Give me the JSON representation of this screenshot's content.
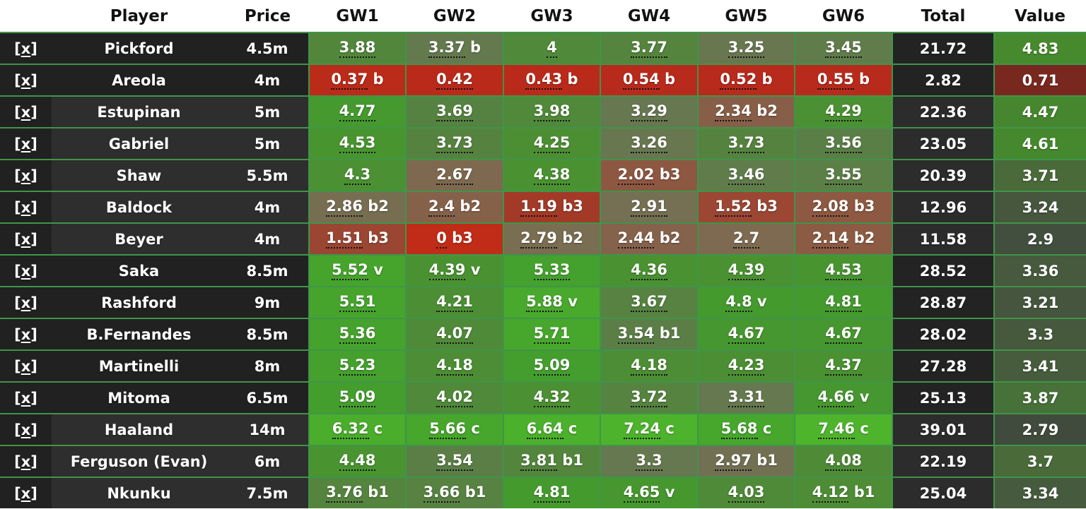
{
  "header": {
    "remove": "",
    "player": "Player",
    "price": "Price",
    "gws": [
      "GW1",
      "GW2",
      "GW3",
      "GW4",
      "GW5",
      "GW6"
    ],
    "total": "Total",
    "value": "Value"
  },
  "remove_label": "[x]",
  "group_shades": {
    "gk": "dark",
    "def": "light",
    "mid": "dark",
    "fwd": "light"
  },
  "colors": {
    "header_bg": "#ffffff",
    "header_text": "#121212",
    "cell_text": "#ffffff",
    "row_bg_dark": "#212121",
    "row_bg_light": "#2e2e2e",
    "total_bg_dark": "#232323",
    "total_bg_light": "#2c2c2c",
    "grid_border": "#3f9549",
    "dotted_underline": "#101010"
  },
  "heatmap": {
    "gw_stops": [
      [
        0.0,
        "#c02c17"
      ],
      [
        0.55,
        "#b82a1c"
      ],
      [
        1.2,
        "#a33a27"
      ],
      [
        1.55,
        "#9a4835"
      ],
      [
        2.1,
        "#8c5a43"
      ],
      [
        2.45,
        "#85624b"
      ],
      [
        2.75,
        "#7b6c52"
      ],
      [
        3.05,
        "#6f7253"
      ],
      [
        3.4,
        "#637a4e"
      ],
      [
        3.6,
        "#588044"
      ],
      [
        3.8,
        "#54853d"
      ],
      [
        4.05,
        "#4f8a38"
      ],
      [
        4.3,
        "#4b9032"
      ],
      [
        4.6,
        "#47962f"
      ],
      [
        4.9,
        "#449c2e"
      ],
      [
        5.3,
        "#45a12d"
      ],
      [
        5.7,
        "#47a72c"
      ],
      [
        6.1,
        "#49ac2b"
      ],
      [
        6.7,
        "#4bb02b"
      ],
      [
        7.5,
        "#4eb42c"
      ]
    ],
    "value_stops": [
      [
        0.5,
        "#7f241c"
      ],
      [
        1.5,
        "#63362a"
      ],
      [
        2.3,
        "#4a4436"
      ],
      [
        2.79,
        "#404b3d"
      ],
      [
        3.0,
        "#435240"
      ],
      [
        3.24,
        "#46573e"
      ],
      [
        3.45,
        "#475d3c"
      ],
      [
        3.7,
        "#4a6a3a"
      ],
      [
        3.9,
        "#487139"
      ],
      [
        4.2,
        "#467d33"
      ],
      [
        4.47,
        "#46862e"
      ],
      [
        4.9,
        "#478b2e"
      ]
    ]
  },
  "players": [
    {
      "name": "Pickford",
      "price": "4.5m",
      "group": "gk",
      "gw": [
        "3.88",
        "3.37 b",
        "4",
        "3.77",
        "3.25",
        "3.45"
      ],
      "total": "21.72",
      "value": "4.83"
    },
    {
      "name": "Areola",
      "price": "4m",
      "group": "gk",
      "gw": [
        "0.37 b",
        "0.42",
        "0.43 b",
        "0.54 b",
        "0.52 b",
        "0.55 b"
      ],
      "total": "2.82",
      "value": "0.71"
    },
    {
      "name": "Estupinan",
      "price": "5m",
      "group": "def",
      "gw": [
        "4.77",
        "3.69",
        "3.98",
        "3.29",
        "2.34 b2",
        "4.29"
      ],
      "total": "22.36",
      "value": "4.47"
    },
    {
      "name": "Gabriel",
      "price": "5m",
      "group": "def",
      "gw": [
        "4.53",
        "3.73",
        "4.25",
        "3.26",
        "3.73",
        "3.56"
      ],
      "total": "23.05",
      "value": "4.61"
    },
    {
      "name": "Shaw",
      "price": "5.5m",
      "group": "def",
      "gw": [
        "4.3",
        "2.67",
        "4.38",
        "2.02 b3",
        "3.46",
        "3.55"
      ],
      "total": "20.39",
      "value": "3.71"
    },
    {
      "name": "Baldock",
      "price": "4m",
      "group": "def",
      "gw": [
        "2.86 b2",
        "2.4 b2",
        "1.19 b3",
        "2.91",
        "1.52 b3",
        "2.08 b3"
      ],
      "total": "12.96",
      "value": "3.24"
    },
    {
      "name": "Beyer",
      "price": "4m",
      "group": "def",
      "gw": [
        "1.51 b3",
        "0 b3",
        "2.79 b2",
        "2.44 b2",
        "2.7",
        "2.14 b2"
      ],
      "total": "11.58",
      "value": "2.9"
    },
    {
      "name": "Saka",
      "price": "8.5m",
      "group": "mid",
      "gw": [
        "5.52 v",
        "4.39 v",
        "5.33",
        "4.36",
        "4.39",
        "4.53"
      ],
      "total": "28.52",
      "value": "3.36"
    },
    {
      "name": "Rashford",
      "price": "9m",
      "group": "mid",
      "gw": [
        "5.51",
        "4.21",
        "5.88 v",
        "3.67",
        "4.8 v",
        "4.81"
      ],
      "total": "28.87",
      "value": "3.21"
    },
    {
      "name": "B.Fernandes",
      "price": "8.5m",
      "group": "mid",
      "gw": [
        "5.36",
        "4.07",
        "5.71",
        "3.54 b1",
        "4.67",
        "4.67"
      ],
      "total": "28.02",
      "value": "3.3"
    },
    {
      "name": "Martinelli",
      "price": "8m",
      "group": "mid",
      "gw": [
        "5.23",
        "4.18",
        "5.09",
        "4.18",
        "4.23",
        "4.37"
      ],
      "total": "27.28",
      "value": "3.41"
    },
    {
      "name": "Mitoma",
      "price": "6.5m",
      "group": "mid",
      "gw": [
        "5.09",
        "4.02",
        "4.32",
        "3.72",
        "3.31",
        "4.66 v"
      ],
      "total": "25.13",
      "value": "3.87"
    },
    {
      "name": "Haaland",
      "price": "14m",
      "group": "fwd",
      "gw": [
        "6.32 c",
        "5.66 c",
        "6.64 c",
        "7.24 c",
        "5.68 c",
        "7.46 c"
      ],
      "total": "39.01",
      "value": "2.79"
    },
    {
      "name": "Ferguson (Evan)",
      "price": "6m",
      "group": "fwd",
      "gw": [
        "4.48",
        "3.54",
        "3.81 b1",
        "3.3",
        "2.97 b1",
        "4.08"
      ],
      "total": "22.19",
      "value": "3.7"
    },
    {
      "name": "Nkunku",
      "price": "7.5m",
      "group": "fwd",
      "gw": [
        "3.76 b1",
        "3.66 b1",
        "4.81",
        "4.65 v",
        "4.03",
        "4.12 b1"
      ],
      "total": "25.04",
      "value": "3.34"
    }
  ]
}
